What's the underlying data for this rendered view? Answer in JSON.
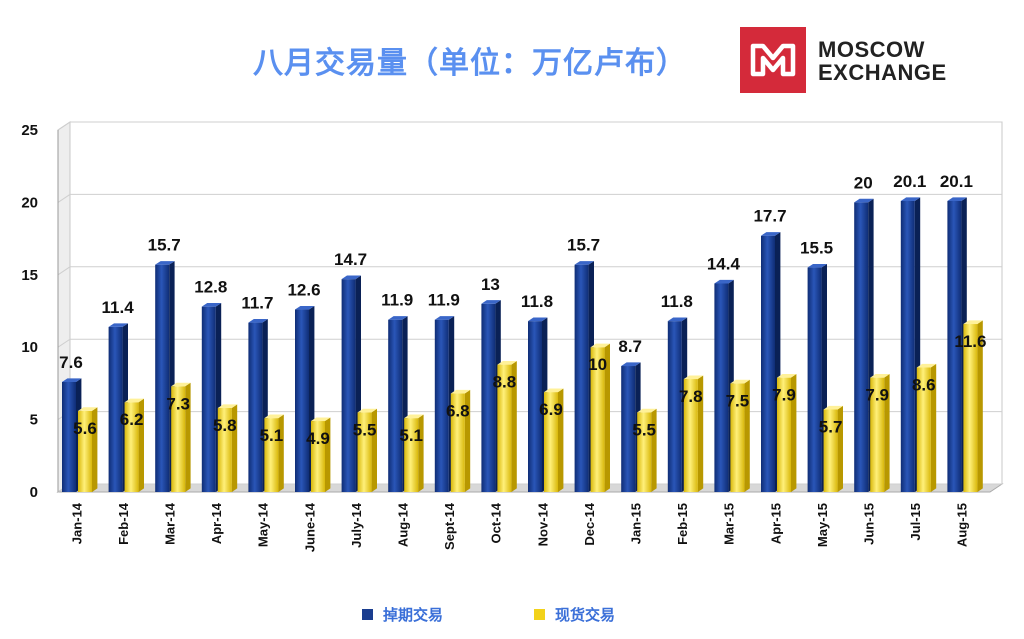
{
  "title": "八月交易量（单位：万亿卢布）",
  "logo": {
    "line1": "MOSCOW",
    "line2": "EXCHANGE"
  },
  "colors": {
    "derivatives": "#1a3d8f",
    "spot": "#f2d21a",
    "title": "#5a90f0",
    "logo": "#d42a3a"
  },
  "legend": {
    "derivatives_label": "掉期交易",
    "spot_label": "现货交易",
    "position": "bottom"
  },
  "chart_data": {
    "type": "bar",
    "title": "八月交易量（单位：万亿卢布）",
    "xlabel": "",
    "ylabel": "",
    "ylim": [
      0,
      25
    ],
    "yticks": [
      0,
      5,
      10,
      15,
      20,
      25
    ],
    "grid": true,
    "categories": [
      "Jan-14",
      "Feb-14",
      "Mar-14",
      "Apr-14",
      "May-14",
      "June-14",
      "July-14",
      "Aug-14",
      "Sept-14",
      "Oct-14",
      "Nov-14",
      "Dec-14",
      "Jan-15",
      "Feb-15",
      "Mar-15",
      "Apr-15",
      "May-15",
      "Jun-15",
      "Jul-15",
      "Aug-15"
    ],
    "series": [
      {
        "name": "掉期交易",
        "values": [
          7.6,
          11.4,
          15.7,
          12.8,
          11.7,
          12.6,
          14.7,
          11.9,
          11.9,
          13,
          11.8,
          15.7,
          8.7,
          11.8,
          14.4,
          17.7,
          15.5,
          20,
          20.1,
          20.1
        ]
      },
      {
        "name": "现货交易",
        "values": [
          5.6,
          6.2,
          7.3,
          5.8,
          5.1,
          4.9,
          5.5,
          5.1,
          6.8,
          8.8,
          6.9,
          10,
          5.5,
          7.8,
          7.5,
          7.9,
          5.7,
          7.9,
          8.6,
          11.6
        ]
      }
    ]
  }
}
